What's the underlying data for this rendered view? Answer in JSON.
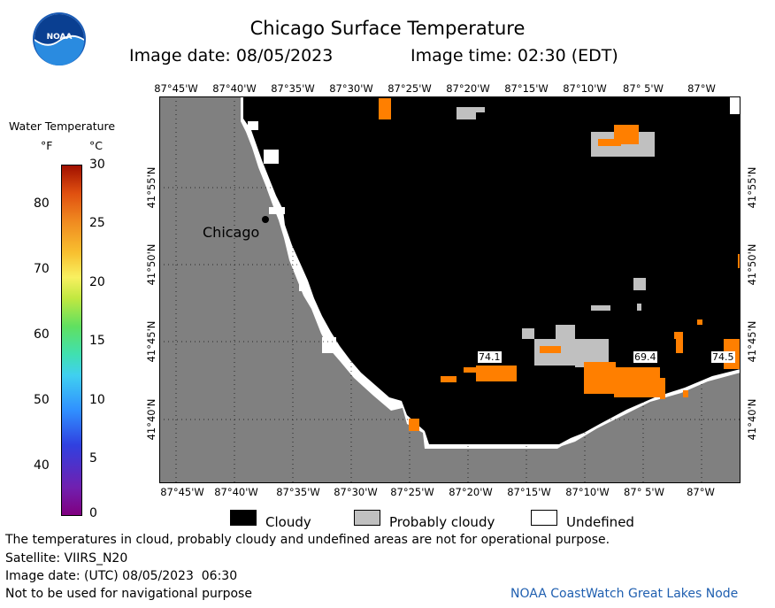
{
  "header": {
    "title": "Chicago Surface Temperature",
    "image_date": "Image date: 08/05/2023",
    "image_time": "Image time: 02:30 (EDT)",
    "logo_text": "NOAA"
  },
  "map": {
    "lon_labels_top": [
      "87°45'W",
      "87°40'W",
      "87°35'W",
      "87°30'W",
      "87°25'W",
      "87°20'W",
      "87°15'W",
      "87°10'W",
      "87° 5'W",
      "87°W"
    ],
    "lon_labels_bottom": [
      "87°45'W",
      "87°40'W",
      "87°35'W",
      "87°30'W",
      "87°25'W",
      "87°20'W",
      "87°15'W",
      "87°10'W",
      "87° 5'W",
      "87°W"
    ],
    "lat_labels_left": [
      "41°55'N",
      "41°50'N",
      "41°45'N",
      "41°40'N"
    ],
    "lat_labels_right": [
      "41°55'N",
      "41°50'N",
      "41°45'N",
      "41°40'N"
    ],
    "city_label": "Chicago",
    "temperature_labels": [
      "74.1",
      "69.4",
      "74.5"
    ]
  },
  "colorbar": {
    "title": "Water Temperature",
    "unit_f": "°F",
    "unit_c": "°C",
    "f_ticks": [
      "80",
      "70",
      "60",
      "50",
      "40"
    ],
    "c_ticks": [
      "30",
      "25",
      "20",
      "15",
      "10",
      "5",
      "0"
    ]
  },
  "legend": {
    "cloudy": "Cloudy",
    "probably_cloudy": "Probably cloudy",
    "undefined": "Undefined",
    "cloudy_color": "#000000",
    "probably_cloudy_color": "#c0c0c0",
    "undefined_color": "#ffffff"
  },
  "footer": {
    "disclaimer": "The temperatures in cloud, probably cloudy and undefined areas are not for operational purpose.",
    "satellite": "Satellite: VIIRS_N20",
    "utc_date": "Image date: (UTC) 08/05/2023  06:30",
    "nav_warning": "Not to be used for navigational purpose",
    "credit": "NOAA CoastWatch Great Lakes Node"
  },
  "colors": {
    "land": "#808080",
    "cloud": "#000000",
    "warm_water": "#ff7f00",
    "credit_blue": "#1f5fb0"
  }
}
